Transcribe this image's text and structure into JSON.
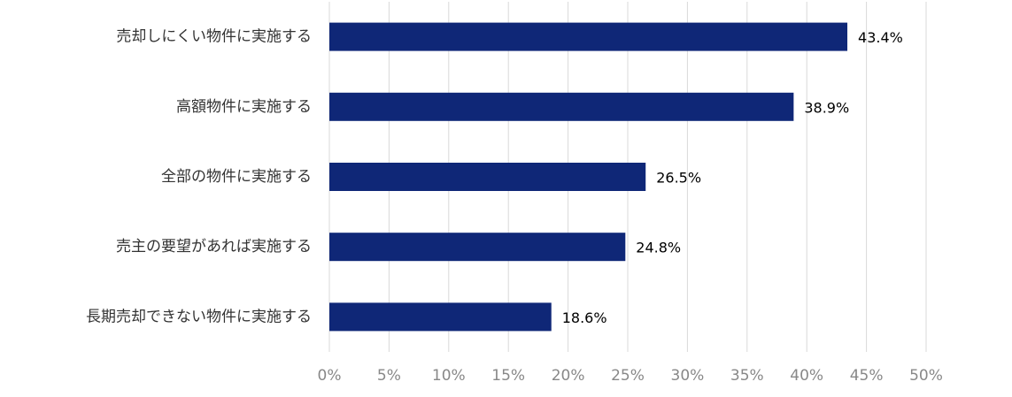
{
  "chart_data": {
    "type": "bar",
    "orientation": "horizontal",
    "categories": [
      "売却しにくい物件に実施する",
      "高額物件に実施する",
      "全部の物件に実施する",
      "売主の要望があれば実施する",
      "長期売却できない物件に実施する"
    ],
    "values": [
      43.4,
      38.9,
      26.5,
      24.8,
      18.6
    ],
    "value_labels": [
      "43.4%",
      "38.9%",
      "26.5%",
      "24.8%",
      "18.6%"
    ],
    "color": "#0f2777",
    "xlim": [
      0,
      50
    ],
    "xticks": [
      {
        "value": 0,
        "label": "0%"
      },
      {
        "value": 5,
        "label": "5%"
      },
      {
        "value": 10,
        "label": "10%"
      },
      {
        "value": 15,
        "label": "15%"
      },
      {
        "value": 20,
        "label": "20%"
      },
      {
        "value": 25,
        "label": "25%"
      },
      {
        "value": 30,
        "label": "30%"
      },
      {
        "value": 35,
        "label": "35%"
      },
      {
        "value": 40,
        "label": "40%"
      },
      {
        "value": 45,
        "label": "45%"
      },
      {
        "value": 50,
        "label": "50%"
      }
    ],
    "grid": true
  }
}
